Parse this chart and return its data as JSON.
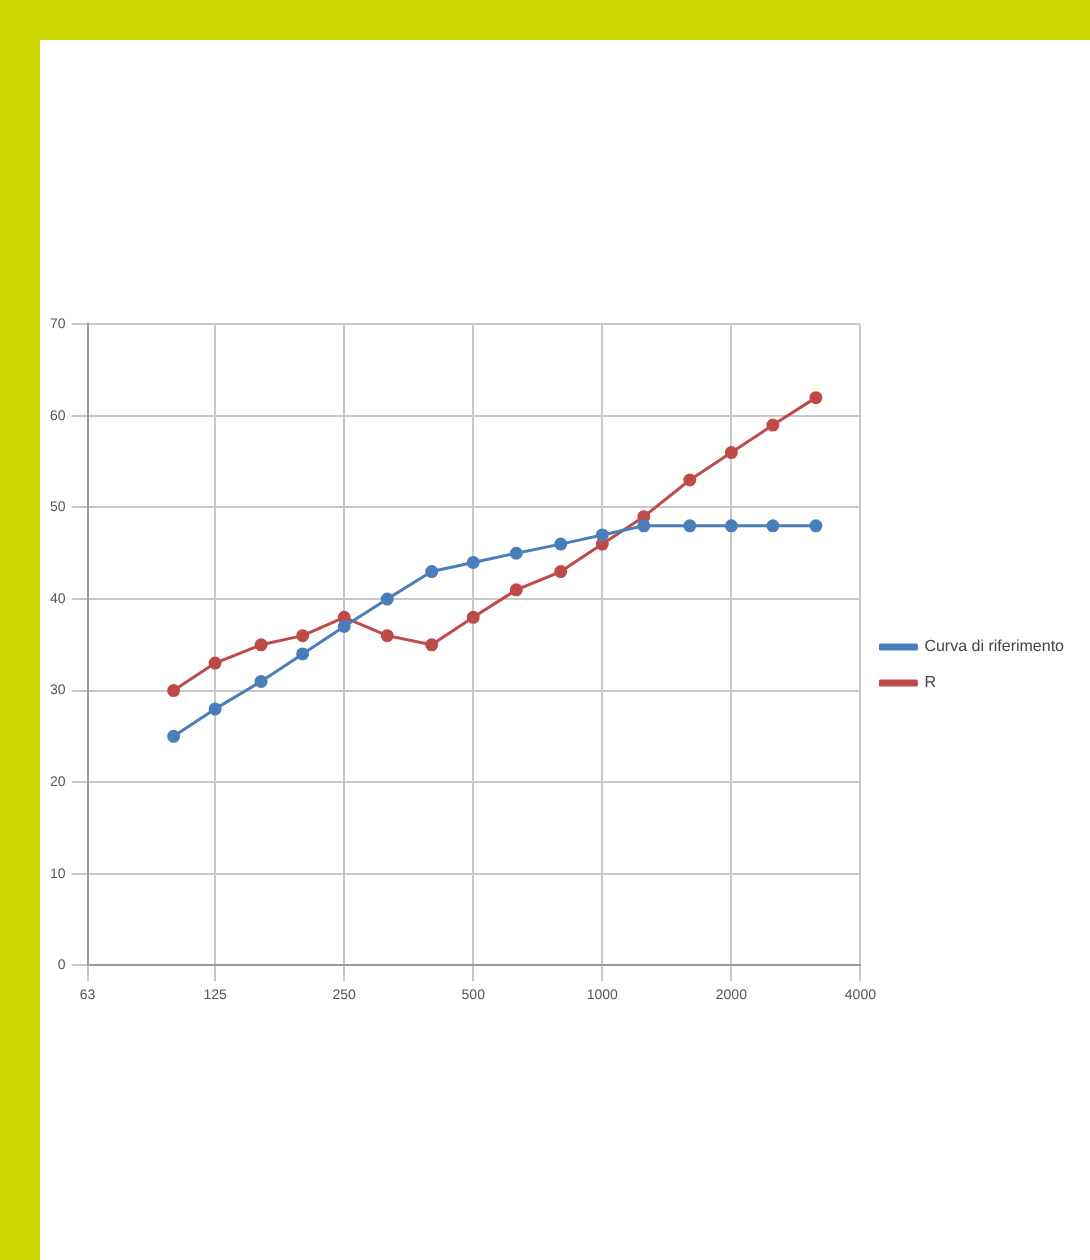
{
  "chart_data": {
    "type": "line",
    "x": [
      100,
      125,
      160,
      200,
      250,
      315,
      400,
      500,
      630,
      800,
      1000,
      1250,
      1600,
      2000,
      2500,
      3150
    ],
    "series": [
      {
        "name": "Curva di riferimento",
        "color": "#4a7ebb",
        "values": [
          25,
          28,
          31,
          34,
          37,
          40,
          43,
          44,
          45,
          46,
          47,
          48,
          48,
          48,
          48,
          48
        ]
      },
      {
        "name": "R",
        "color": "#be4b48",
        "values": [
          30,
          33,
          35,
          36,
          38,
          36,
          35,
          38,
          41,
          43,
          46,
          49,
          53,
          56,
          59,
          62
        ]
      }
    ],
    "log": "x",
    "xlim": [
      63,
      4000
    ],
    "xticks": [
      63,
      125,
      250,
      500,
      1000,
      2000,
      4000
    ],
    "ylim": [
      0,
      70
    ],
    "yticks": [
      0,
      10,
      20,
      30,
      40,
      50,
      60,
      70
    ],
    "grid": true,
    "legend": "right",
    "marker": "circle",
    "line_style": "solid"
  }
}
